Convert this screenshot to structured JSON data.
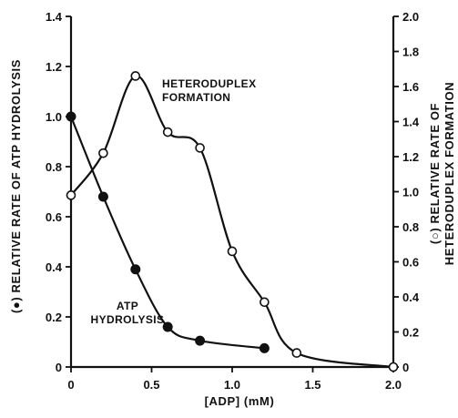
{
  "chart_data": {
    "type": "line",
    "title": "",
    "xlabel": "[ADP] (mM)",
    "ylabel_left": "(●) RELATIVE RATE OF ATP HYDROLYSIS",
    "ylabel_right": "(○) RELATIVE RATE OF HETERODUPLEX FORMATION",
    "xlim": [
      0,
      2.0
    ],
    "ylim_left": [
      0,
      1.4
    ],
    "ylim_right": [
      0,
      2.0
    ],
    "x_ticks": [
      "0",
      "0.5",
      "1.0",
      "1.5",
      "2.0"
    ],
    "y_left_ticks": [
      "0",
      "0.2",
      "0.4",
      "0.6",
      "0.8",
      "1.0",
      "1.2",
      "1.4"
    ],
    "y_right_ticks": [
      "0",
      "0.2",
      "0.4",
      "0.6",
      "0.8",
      "1.0",
      "1.2",
      "1.4",
      "1.6",
      "1.8",
      "2.0"
    ],
    "grid": false,
    "series": [
      {
        "name": "ATP HYDROLYSIS",
        "axis": "left",
        "marker": "filled-circle",
        "x": [
          0,
          0.2,
          0.4,
          0.6,
          0.8,
          1.2
        ],
        "y": [
          1.0,
          0.68,
          0.39,
          0.16,
          0.105,
          0.075
        ]
      },
      {
        "name": "HETERODUPLEX FORMATION",
        "axis": "right",
        "marker": "open-circle",
        "x": [
          0,
          0.2,
          0.4,
          0.6,
          0.8,
          1.0,
          1.2,
          1.4,
          2.0
        ],
        "y": [
          0.98,
          1.22,
          1.66,
          1.34,
          1.25,
          0.66,
          0.37,
          0.08,
          0.0
        ]
      }
    ],
    "annotations": [
      {
        "text": [
          "HETERODUPLEX",
          "FORMATION"
        ],
        "series": "HETERODUPLEX FORMATION"
      },
      {
        "text": [
          "ATP",
          "HYDROLYSIS"
        ],
        "series": "ATP HYDROLYSIS"
      }
    ],
    "colors": {
      "ink": "#111111",
      "background": "#ffffff"
    }
  }
}
